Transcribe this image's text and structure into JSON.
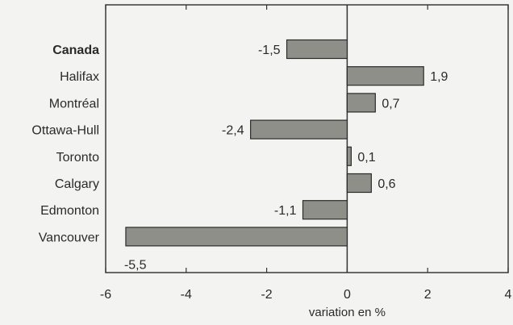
{
  "chart_data": {
    "type": "bar",
    "orientation": "horizontal",
    "categories": [
      "Canada",
      "Halifax",
      "Montréal",
      "Ottawa-Hull",
      "Toronto",
      "Calgary",
      "Edmonton",
      "Vancouver"
    ],
    "values": [
      -1.5,
      1.9,
      0.7,
      -2.4,
      0.1,
      0.6,
      -1.1,
      -5.5
    ],
    "value_labels": [
      "-1,5",
      "1,9",
      "0,7",
      "-2,4",
      "0,1",
      "0,6",
      "-1,1",
      "-5,5"
    ],
    "bold_categories": [
      "Canada"
    ],
    "xlabel": "variation en %",
    "ylabel": "",
    "title": "",
    "xlim": [
      -6,
      4
    ],
    "xticks": [
      -6,
      -4,
      -2,
      0,
      2,
      4
    ],
    "xtick_labels": [
      "-6",
      "-4",
      "-2",
      "0",
      "2",
      "4"
    ],
    "grid": false,
    "legend": "none",
    "bar_color": "#8f8f8a",
    "bar_edge_color": "#2b2b2b"
  }
}
